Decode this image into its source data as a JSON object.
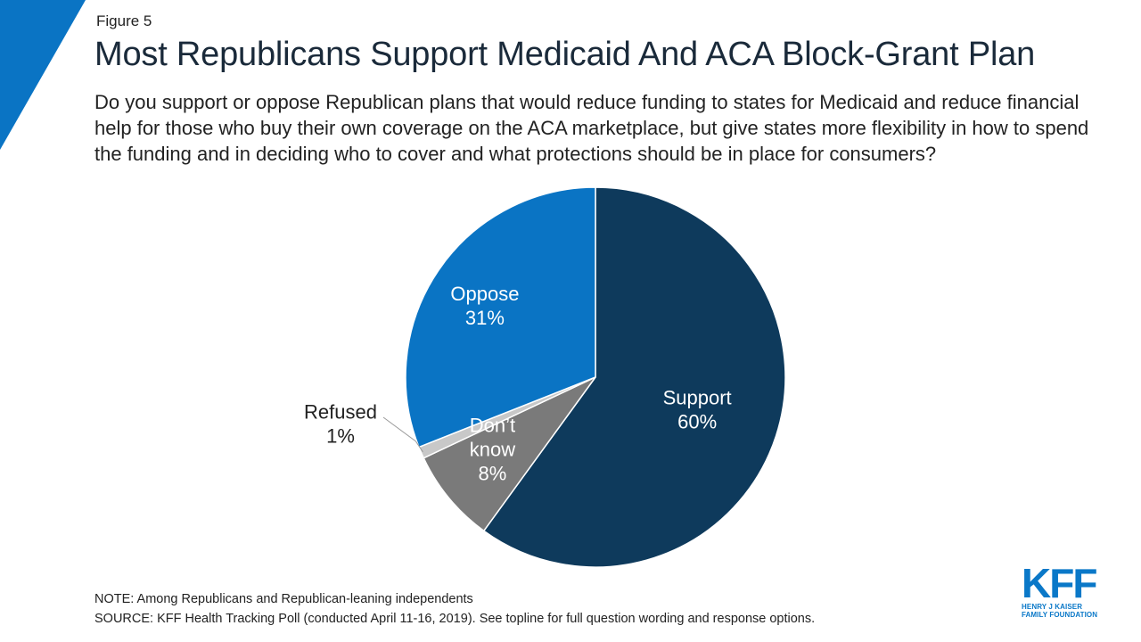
{
  "header": {
    "figure_label": "Figure 5",
    "title": "Most Republicans Support Medicaid And ACA Block-Grant Plan",
    "question": "Do you support or oppose Republican plans that would reduce funding to states for Medicaid and reduce financial help for those who buy their own coverage on the ACA marketplace, but give states more flexibility in how to spend the funding and in deciding who to cover and what protections should be in place for consumers?"
  },
  "chart_data": {
    "type": "pie",
    "slices": [
      {
        "label": "Support",
        "value_label": "60%",
        "value": 60,
        "color": "#0e3a5c"
      },
      {
        "label": "Don’t know",
        "label_lines": [
          "Don’t",
          "know"
        ],
        "value_label": "8%",
        "value": 8,
        "color": "#7a7a7a"
      },
      {
        "label": "Refused",
        "value_label": "1%",
        "value": 1,
        "color": "#c8c8c8"
      },
      {
        "label": "Oppose",
        "value_label": "31%",
        "value": 31,
        "color": "#0a74c4"
      }
    ]
  },
  "footer": {
    "note": "NOTE: Among Republicans and Republican-leaning independents",
    "source": "SOURCE: KFF Health Tracking Poll (conducted April 11-16, 2019). See topline for full question wording and response options."
  },
  "logo": {
    "mark": "KFF",
    "line1": "HENRY J KAISER",
    "line2": "FAMILY FOUNDATION"
  },
  "colors": {
    "accent": "#0a74c4",
    "corner": "#0a74c4"
  }
}
